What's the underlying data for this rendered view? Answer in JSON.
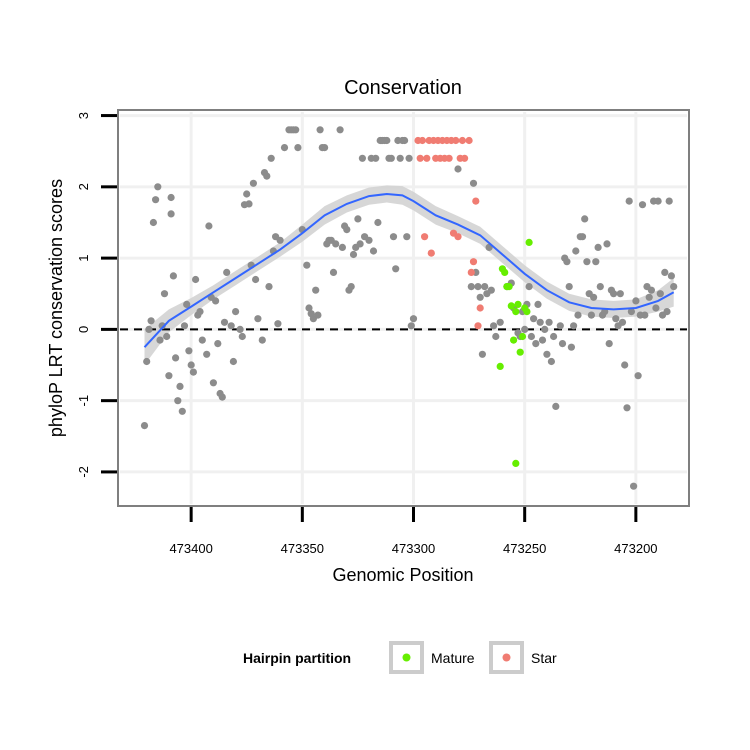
{
  "chart_data": {
    "type": "scatter",
    "title": "Conservation",
    "xlabel": "Genomic Position",
    "ylabel": "phyloP LRT conservation scores",
    "xlim": [
      473432,
      473177
    ],
    "ylim": [
      -2.45,
      3.05
    ],
    "x_reversed": true,
    "x_ticks": [
      473400,
      473350,
      473300,
      473250,
      473200
    ],
    "x_tick_labels": [
      "473400",
      "473350",
      "473300",
      "473250",
      "473200"
    ],
    "y_ticks": [
      -2,
      -1,
      0,
      1,
      2,
      3
    ],
    "y_tick_labels": [
      "-2",
      "-1",
      "0",
      "1",
      "2",
      "3"
    ],
    "reference_line": {
      "y": 0,
      "style": "dashed"
    },
    "legend": {
      "title": "Hairpin partition",
      "placement": "bottom",
      "entries": [
        {
          "label": "Mature",
          "color": "#66ee00"
        },
        {
          "label": "Star",
          "color": "#f07c72"
        }
      ]
    },
    "colors": {
      "other": "#8c8c8c",
      "mature": "#66ee00",
      "star": "#f07c72",
      "smooth": "#3366ff",
      "ribbon": "#d0d0d0"
    },
    "series": [
      {
        "name": "Other",
        "points": [
          [
            473421,
            -1.35
          ],
          [
            473420,
            -0.45
          ],
          [
            473419,
            0.0
          ],
          [
            473418,
            0.12
          ],
          [
            473417,
            1.5
          ],
          [
            473416,
            1.82
          ],
          [
            473415,
            2.0
          ],
          [
            473414,
            -0.15
          ],
          [
            473413,
            0.05
          ],
          [
            473412,
            0.5
          ],
          [
            473411,
            -0.1
          ],
          [
            473410,
            -0.65
          ],
          [
            473409,
            1.85
          ],
          [
            473409,
            1.62
          ],
          [
            473408,
            0.75
          ],
          [
            473407,
            -0.4
          ],
          [
            473406,
            -1.0
          ],
          [
            473405,
            -0.8
          ],
          [
            473404,
            -1.15
          ],
          [
            473403,
            0.05
          ],
          [
            473402,
            0.35
          ],
          [
            473401,
            -0.3
          ],
          [
            473400,
            -0.5
          ],
          [
            473399,
            -0.6
          ],
          [
            473398,
            0.7
          ],
          [
            473397,
            0.2
          ],
          [
            473396,
            0.25
          ],
          [
            473395,
            -0.15
          ],
          [
            473393,
            -0.35
          ],
          [
            473392,
            1.45
          ],
          [
            473391,
            0.45
          ],
          [
            473390,
            -0.75
          ],
          [
            473389,
            0.4
          ],
          [
            473388,
            -0.2
          ],
          [
            473387,
            -0.9
          ],
          [
            473386,
            -0.95
          ],
          [
            473385,
            0.1
          ],
          [
            473384,
            0.8
          ],
          [
            473382,
            0.05
          ],
          [
            473381,
            -0.45
          ],
          [
            473380,
            0.25
          ],
          [
            473378,
            0.0
          ],
          [
            473377,
            -0.1
          ],
          [
            473376,
            1.75
          ],
          [
            473375,
            1.9
          ],
          [
            473374,
            1.76
          ],
          [
            473373,
            0.9
          ],
          [
            473372,
            2.05
          ],
          [
            473371,
            0.7
          ],
          [
            473370,
            0.15
          ],
          [
            473368,
            -0.15
          ],
          [
            473367,
            2.2
          ],
          [
            473366,
            2.15
          ],
          [
            473365,
            0.6
          ],
          [
            473364,
            2.4
          ],
          [
            473363,
            1.1
          ],
          [
            473362,
            1.3
          ],
          [
            473361,
            0.08
          ],
          [
            473360,
            1.25
          ],
          [
            473358,
            2.55
          ],
          [
            473356,
            2.8
          ],
          [
            473355,
            2.8
          ],
          [
            473354,
            2.8
          ],
          [
            473353,
            2.8
          ],
          [
            473352,
            2.55
          ],
          [
            473350,
            1.4
          ],
          [
            473348,
            0.9
          ],
          [
            473347,
            0.3
          ],
          [
            473346,
            0.22
          ],
          [
            473345,
            0.15
          ],
          [
            473344,
            0.55
          ],
          [
            473343,
            0.2
          ],
          [
            473342,
            2.8
          ],
          [
            473341,
            2.55
          ],
          [
            473340,
            2.55
          ],
          [
            473339,
            1.2
          ],
          [
            473338,
            1.25
          ],
          [
            473337,
            1.25
          ],
          [
            473336,
            0.8
          ],
          [
            473335,
            1.2
          ],
          [
            473333,
            2.8
          ],
          [
            473332,
            1.15
          ],
          [
            473331,
            1.45
          ],
          [
            473330,
            1.4
          ],
          [
            473329,
            0.55
          ],
          [
            473328,
            0.6
          ],
          [
            473327,
            1.05
          ],
          [
            473326,
            1.15
          ],
          [
            473325,
            1.55
          ],
          [
            473324,
            1.2
          ],
          [
            473323,
            2.4
          ],
          [
            473322,
            1.3
          ],
          [
            473320,
            1.25
          ],
          [
            473319,
            2.4
          ],
          [
            473318,
            1.1
          ],
          [
            473317,
            2.4
          ],
          [
            473316,
            1.5
          ],
          [
            473315,
            2.65
          ],
          [
            473314,
            2.65
          ],
          [
            473313,
            2.65
          ],
          [
            473312,
            2.65
          ],
          [
            473311,
            2.4
          ],
          [
            473310,
            2.4
          ],
          [
            473309,
            1.3
          ],
          [
            473308,
            0.85
          ],
          [
            473307,
            2.65
          ],
          [
            473306,
            2.4
          ],
          [
            473305,
            2.65
          ],
          [
            473304,
            2.65
          ],
          [
            473303,
            1.3
          ],
          [
            473302,
            2.4
          ],
          [
            473301,
            0.05
          ],
          [
            473300,
            0.15
          ],
          [
            473280,
            2.25
          ],
          [
            473274,
            0.6
          ],
          [
            473273,
            2.05
          ],
          [
            473272,
            0.8
          ],
          [
            473271,
            0.6
          ],
          [
            473270,
            0.45
          ],
          [
            473269,
            -0.35
          ],
          [
            473268,
            0.6
          ],
          [
            473267,
            0.5
          ],
          [
            473266,
            1.15
          ],
          [
            473265,
            0.55
          ],
          [
            473264,
            0.05
          ],
          [
            473263,
            -0.1
          ],
          [
            473261,
            0.1
          ],
          [
            473258,
            0.6
          ],
          [
            473256,
            0.65
          ],
          [
            473255,
            0.3
          ],
          [
            473253,
            -0.05
          ],
          [
            473252,
            -0.1
          ],
          [
            473251,
            0.25
          ],
          [
            473250,
            0.0
          ],
          [
            473249,
            0.35
          ],
          [
            473248,
            0.6
          ],
          [
            473247,
            -0.1
          ],
          [
            473246,
            0.15
          ],
          [
            473245,
            -0.2
          ],
          [
            473244,
            0.35
          ],
          [
            473243,
            0.1
          ],
          [
            473242,
            -0.15
          ],
          [
            473241,
            0.0
          ],
          [
            473240,
            -0.35
          ],
          [
            473239,
            0.1
          ],
          [
            473238,
            -0.45
          ],
          [
            473237,
            -0.1
          ],
          [
            473236,
            -1.08
          ],
          [
            473234,
            0.05
          ],
          [
            473233,
            -0.2
          ],
          [
            473232,
            1.0
          ],
          [
            473231,
            0.95
          ],
          [
            473230,
            0.6
          ],
          [
            473229,
            -0.25
          ],
          [
            473228,
            0.05
          ],
          [
            473227,
            1.1
          ],
          [
            473226,
            0.2
          ],
          [
            473225,
            1.3
          ],
          [
            473224,
            1.3
          ],
          [
            473223,
            1.55
          ],
          [
            473222,
            0.95
          ],
          [
            473221,
            0.5
          ],
          [
            473220,
            0.2
          ],
          [
            473219,
            0.45
          ],
          [
            473218,
            0.95
          ],
          [
            473217,
            1.15
          ],
          [
            473216,
            0.6
          ],
          [
            473215,
            0.2
          ],
          [
            473214,
            0.25
          ],
          [
            473213,
            1.2
          ],
          [
            473212,
            -0.2
          ],
          [
            473211,
            0.55
          ],
          [
            473210,
            0.5
          ],
          [
            473209,
            0.15
          ],
          [
            473208,
            0.05
          ],
          [
            473207,
            0.5
          ],
          [
            473206,
            0.1
          ],
          [
            473205,
            -0.5
          ],
          [
            473204,
            -1.1
          ],
          [
            473203,
            1.8
          ],
          [
            473202,
            0.25
          ],
          [
            473201,
            -2.2
          ],
          [
            473200,
            0.4
          ],
          [
            473199,
            -0.65
          ],
          [
            473198,
            0.2
          ],
          [
            473197,
            1.75
          ],
          [
            473196,
            0.2
          ],
          [
            473195,
            0.6
          ],
          [
            473194,
            0.45
          ],
          [
            473193,
            0.55
          ],
          [
            473192,
            1.8
          ],
          [
            473191,
            0.3
          ],
          [
            473190,
            1.8
          ],
          [
            473189,
            0.5
          ],
          [
            473188,
            0.2
          ],
          [
            473187,
            0.8
          ],
          [
            473186,
            0.25
          ],
          [
            473185,
            1.8
          ],
          [
            473184,
            0.75
          ],
          [
            473183,
            0.6
          ]
        ]
      },
      {
        "name": "Star",
        "points": [
          [
            473298,
            2.65
          ],
          [
            473297,
            2.4
          ],
          [
            473296,
            2.65
          ],
          [
            473295,
            1.3
          ],
          [
            473294,
            2.4
          ],
          [
            473293,
            2.65
          ],
          [
            473292,
            1.07
          ],
          [
            473291,
            2.65
          ],
          [
            473290,
            2.4
          ],
          [
            473289,
            2.65
          ],
          [
            473288,
            2.4
          ],
          [
            473287,
            2.65
          ],
          [
            473286,
            2.4
          ],
          [
            473285,
            2.65
          ],
          [
            473284,
            2.4
          ],
          [
            473283,
            2.65
          ],
          [
            473282,
            1.35
          ],
          [
            473281,
            2.65
          ],
          [
            473280,
            1.3
          ],
          [
            473279,
            2.4
          ],
          [
            473278,
            2.65
          ],
          [
            473277,
            2.4
          ],
          [
            473275,
            2.65
          ],
          [
            473274,
            0.8
          ],
          [
            473273,
            0.95
          ],
          [
            473272,
            1.8
          ],
          [
            473271,
            0.05
          ],
          [
            473270,
            0.3
          ]
        ]
      },
      {
        "name": "Mature",
        "points": [
          [
            473261,
            -0.52
          ],
          [
            473260,
            0.85
          ],
          [
            473259,
            0.8
          ],
          [
            473258,
            0.6
          ],
          [
            473257,
            0.6
          ],
          [
            473256,
            0.33
          ],
          [
            473255,
            -0.15
          ],
          [
            473254,
            -1.88
          ],
          [
            473254,
            0.25
          ],
          [
            473253,
            0.35
          ],
          [
            473252,
            -0.32
          ],
          [
            473251,
            -0.1
          ],
          [
            473250,
            0.3
          ],
          [
            473249,
            0.25
          ],
          [
            473248,
            1.22
          ]
        ]
      }
    ],
    "smooth": {
      "method": "loess",
      "x": [
        473421,
        473410,
        473400,
        473390,
        473380,
        473370,
        473360,
        473350,
        473340,
        473330,
        473320,
        473312,
        473305,
        473300,
        473290,
        473280,
        473270,
        473260,
        473250,
        473240,
        473230,
        473220,
        473210,
        473200,
        473190,
        473183
      ],
      "y": [
        -0.25,
        0.12,
        0.32,
        0.52,
        0.72,
        0.92,
        1.12,
        1.35,
        1.6,
        1.76,
        1.87,
        1.9,
        1.88,
        1.8,
        1.6,
        1.47,
        1.32,
        1.05,
        0.78,
        0.55,
        0.38,
        0.3,
        0.28,
        0.3,
        0.4,
        0.52
      ],
      "se": [
        0.25,
        0.16,
        0.12,
        0.1,
        0.1,
        0.1,
        0.1,
        0.12,
        0.13,
        0.12,
        0.12,
        0.12,
        0.13,
        0.13,
        0.13,
        0.12,
        0.12,
        0.12,
        0.12,
        0.12,
        0.12,
        0.12,
        0.12,
        0.12,
        0.15,
        0.2
      ]
    }
  }
}
